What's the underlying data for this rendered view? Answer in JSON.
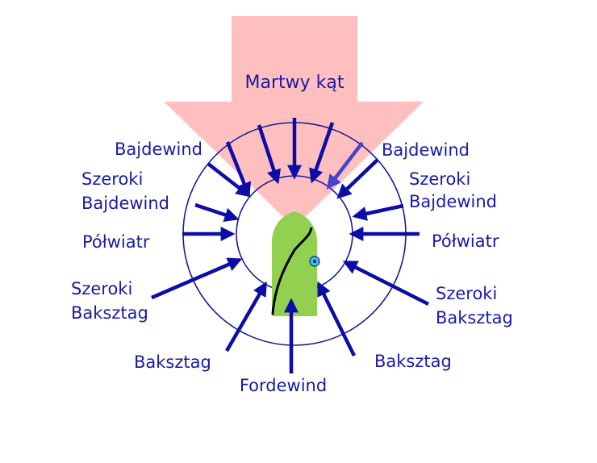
{
  "diagram": {
    "title": "Martwy kąt",
    "colors": {
      "dead_zone": "#ffbfbf",
      "circle_stroke": "#1a1a9a",
      "arrow": "#0c0ca8",
      "arrow_highlight": "#4444cc",
      "text": "#1a1aa6",
      "boat": "#92d050"
    },
    "labels": {
      "left_close_hauled": "Bajdewind",
      "left_close_reach_1": "Szeroki",
      "left_close_reach_2": "Bajdewind",
      "left_beam_reach": "Półwiatr",
      "left_broad_reach_1": "Szeroki",
      "left_broad_reach_2": "Baksztag",
      "left_run_quarter": "Baksztag",
      "bottom_run": "Fordewind",
      "right_run_quarter": "Baksztag",
      "right_broad_reach_1": "Szeroki",
      "right_broad_reach_2": "Baksztag",
      "right_beam_reach": "Półwiatr",
      "right_close_reach_1": "Szeroki",
      "right_close_reach_2": "Bajdewind",
      "right_close_hauled": "Bajdewind"
    }
  }
}
